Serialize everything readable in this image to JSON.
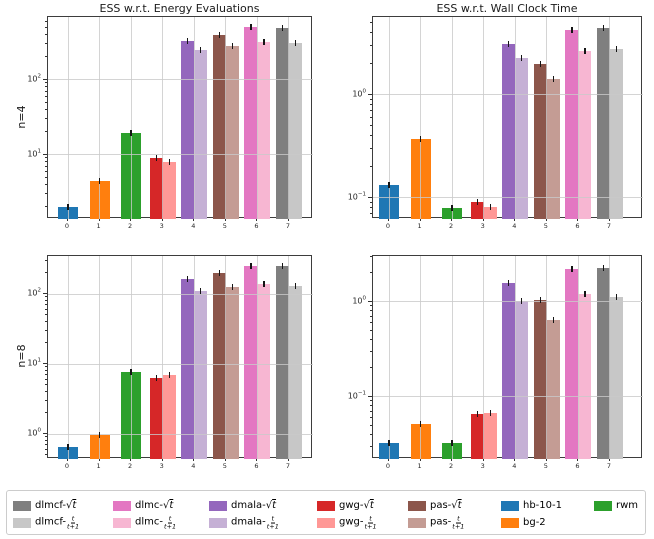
{
  "palette": {
    "dlmcf-sqrt": "#7f7f7f",
    "dlmcf-frac": "#c7c7c7",
    "dlmc-sqrt": "#e377c2",
    "dlmc-frac": "#f7b6d2",
    "dmala-sqrt": "#9467bd",
    "dmala-frac": "#c5b0d5",
    "gwg-sqrt": "#d62728",
    "gwg-frac": "#ff9896",
    "pas-sqrt": "#8c564b",
    "pas-frac": "#c49c94",
    "hb-10-1": "#1f77b4",
    "bg-2": "#ff7f0e",
    "rwm": "#2ca02c"
  },
  "chart_data": [
    {
      "position": "top-left",
      "type": "bar",
      "title": "ESS w.r.t. Energy Evaluations",
      "row_label": "n=4",
      "log_y": true,
      "grid": true,
      "ylim": [
        1.4,
        692
      ],
      "yticks": [
        {
          "value": 10,
          "exp": "1"
        },
        {
          "value": 100,
          "exp": "2"
        }
      ],
      "x_tick_labels": [
        "0",
        "1",
        "2",
        "3",
        "4",
        "5",
        "6",
        "7"
      ],
      "groups": [
        {
          "x": "0",
          "series": [
            {
              "name": "hb-10-1",
              "value": 2.0
            }
          ]
        },
        {
          "x": "1",
          "series": [
            {
              "name": "bg-2",
              "value": 4.5
            }
          ]
        },
        {
          "x": "2",
          "series": [
            {
              "name": "rwm",
              "value": 19.5
            }
          ]
        },
        {
          "x": "3",
          "series": [
            {
              "name": "gwg-sqrt",
              "value": 9.1
            },
            {
              "name": "gwg-frac",
              "value": 8.1
            }
          ]
        },
        {
          "x": "4",
          "series": [
            {
              "name": "dmala-sqrt",
              "value": 330
            },
            {
              "name": "dmala-frac",
              "value": 255
            }
          ]
        },
        {
          "x": "5",
          "series": [
            {
              "name": "pas-sqrt",
              "value": 395
            },
            {
              "name": "pas-frac",
              "value": 285
            }
          ]
        },
        {
          "x": "6",
          "series": [
            {
              "name": "dlmc-sqrt",
              "value": 510
            },
            {
              "name": "dlmc-frac",
              "value": 320
            }
          ]
        },
        {
          "x": "7",
          "series": [
            {
              "name": "dlmcf-sqrt",
              "value": 490
            },
            {
              "name": "dlmcf-frac",
              "value": 310
            }
          ]
        }
      ]
    },
    {
      "position": "top-right",
      "type": "bar",
      "title": "ESS w.r.t. Wall Clock Time",
      "row_label": "",
      "log_y": true,
      "grid": true,
      "ylim": [
        0.0625,
        5.72
      ],
      "yticks": [
        {
          "value": 0.1,
          "exp": "−1"
        },
        {
          "value": 1,
          "exp": "0"
        }
      ],
      "x_tick_labels": [
        "0",
        "1",
        "2",
        "3",
        "4",
        "5",
        "6",
        "7"
      ],
      "groups": [
        {
          "x": "0",
          "series": [
            {
              "name": "hb-10-1",
              "value": 0.135
            }
          ]
        },
        {
          "x": "1",
          "series": [
            {
              "name": "bg-2",
              "value": 0.37
            }
          ]
        },
        {
          "x": "2",
          "series": [
            {
              "name": "rwm",
              "value": 0.08
            }
          ]
        },
        {
          "x": "3",
          "series": [
            {
              "name": "gwg-sqrt",
              "value": 0.092
            },
            {
              "name": "gwg-frac",
              "value": 0.082
            }
          ]
        },
        {
          "x": "4",
          "series": [
            {
              "name": "dmala-sqrt",
              "value": 3.1
            },
            {
              "name": "dmala-frac",
              "value": 2.3
            }
          ]
        },
        {
          "x": "5",
          "series": [
            {
              "name": "pas-sqrt",
              "value": 2.0
            },
            {
              "name": "pas-frac",
              "value": 1.44
            }
          ]
        },
        {
          "x": "6",
          "series": [
            {
              "name": "dlmc-sqrt",
              "value": 4.3
            },
            {
              "name": "dlmc-frac",
              "value": 2.7
            }
          ]
        },
        {
          "x": "7",
          "series": [
            {
              "name": "dlmcf-sqrt",
              "value": 4.45
            },
            {
              "name": "dlmcf-frac",
              "value": 2.8
            }
          ]
        }
      ]
    },
    {
      "position": "bottom-left",
      "type": "bar",
      "title": "",
      "row_label": "n=8",
      "log_y": true,
      "grid": true,
      "ylim": [
        0.44,
        349
      ],
      "yticks": [
        {
          "value": 1,
          "exp": "0"
        },
        {
          "value": 10,
          "exp": "1"
        },
        {
          "value": 100,
          "exp": "2"
        }
      ],
      "x_tick_labels": [
        "0",
        "1",
        "2",
        "3",
        "4",
        "5",
        "6",
        "7"
      ],
      "groups": [
        {
          "x": "0",
          "series": [
            {
              "name": "hb-10-1",
              "value": 0.65
            }
          ]
        },
        {
          "x": "1",
          "series": [
            {
              "name": "bg-2",
              "value": 0.96
            }
          ]
        },
        {
          "x": "2",
          "series": [
            {
              "name": "rwm",
              "value": 7.6
            }
          ]
        },
        {
          "x": "3",
          "series": [
            {
              "name": "gwg-sqrt",
              "value": 6.4
            },
            {
              "name": "gwg-frac",
              "value": 6.9
            }
          ]
        },
        {
          "x": "4",
          "series": [
            {
              "name": "dmala-sqrt",
              "value": 165
            },
            {
              "name": "dmala-frac",
              "value": 110
            }
          ]
        },
        {
          "x": "5",
          "series": [
            {
              "name": "pas-sqrt",
              "value": 200
            },
            {
              "name": "pas-frac",
              "value": 125
            }
          ]
        },
        {
          "x": "6",
          "series": [
            {
              "name": "dlmc-sqrt",
              "value": 250
            },
            {
              "name": "dlmc-frac",
              "value": 140
            }
          ]
        },
        {
          "x": "7",
          "series": [
            {
              "name": "dlmcf-sqrt",
              "value": 250
            },
            {
              "name": "dlmcf-frac",
              "value": 128
            }
          ]
        }
      ]
    },
    {
      "position": "bottom-right",
      "type": "bar",
      "title": "",
      "row_label": "",
      "log_y": true,
      "grid": true,
      "ylim": [
        0.0222,
        3.05
      ],
      "yticks": [
        {
          "value": 0.1,
          "exp": "−1"
        },
        {
          "value": 1,
          "exp": "0"
        }
      ],
      "x_tick_labels": [
        "0",
        "1",
        "2",
        "3",
        "4",
        "5",
        "6",
        "7"
      ],
      "groups": [
        {
          "x": "0",
          "series": [
            {
              "name": "hb-10-1",
              "value": 0.033
            }
          ]
        },
        {
          "x": "1",
          "series": [
            {
              "name": "bg-2",
              "value": 0.052
            }
          ]
        },
        {
          "x": "2",
          "series": [
            {
              "name": "rwm",
              "value": 0.033
            }
          ]
        },
        {
          "x": "3",
          "series": [
            {
              "name": "gwg-sqrt",
              "value": 0.066
            },
            {
              "name": "gwg-frac",
              "value": 0.068
            }
          ]
        },
        {
          "x": "4",
          "series": [
            {
              "name": "dmala-sqrt",
              "value": 1.6
            },
            {
              "name": "dmala-frac",
              "value": 1.03
            }
          ]
        },
        {
          "x": "5",
          "series": [
            {
              "name": "pas-sqrt",
              "value": 1.04
            },
            {
              "name": "pas-frac",
              "value": 0.65
            }
          ]
        },
        {
          "x": "6",
          "series": [
            {
              "name": "dlmc-sqrt",
              "value": 2.2
            },
            {
              "name": "dlmc-frac",
              "value": 1.2
            }
          ]
        },
        {
          "x": "7",
          "series": [
            {
              "name": "dlmcf-sqrt",
              "value": 2.3
            },
            {
              "name": "dlmcf-frac",
              "value": 1.12
            }
          ]
        }
      ]
    }
  ],
  "legend": {
    "sqrt_symbol": "√",
    "frac_numerator": "t",
    "frac_denominator": "t+1",
    "entries": [
      {
        "key": "dlmcf-sqrt",
        "prefix": "dlmcf-",
        "form": "sqrt",
        "text": "dlmcf-√t",
        "col": 0,
        "row": 0
      },
      {
        "key": "dlmcf-frac",
        "prefix": "dlmcf-",
        "form": "frac",
        "text": "dlmcf-t/(t+1)",
        "col": 0,
        "row": 1
      },
      {
        "key": "dlmc-sqrt",
        "prefix": "dlmc-",
        "form": "sqrt",
        "text": "dlmc-√t",
        "col": 1,
        "row": 0
      },
      {
        "key": "dlmc-frac",
        "prefix": "dlmc-",
        "form": "frac",
        "text": "dlmc-t/(t+1)",
        "col": 1,
        "row": 1
      },
      {
        "key": "dmala-sqrt",
        "prefix": "dmala-",
        "form": "sqrt",
        "text": "dmala-√t",
        "col": 2,
        "row": 0
      },
      {
        "key": "dmala-frac",
        "prefix": "dmala-",
        "form": "frac",
        "text": "dmala-t/(t+1)",
        "col": 2,
        "row": 1
      },
      {
        "key": "gwg-sqrt",
        "prefix": "gwg-",
        "form": "sqrt",
        "text": "gwg-√t",
        "col": 3,
        "row": 0
      },
      {
        "key": "gwg-frac",
        "prefix": "gwg-",
        "form": "frac",
        "text": "gwg-t/(t+1)",
        "col": 3,
        "row": 1
      },
      {
        "key": "pas-sqrt",
        "prefix": "pas-",
        "form": "sqrt",
        "text": "pas-√t",
        "col": 4,
        "row": 0
      },
      {
        "key": "pas-frac",
        "prefix": "pas-",
        "form": "frac",
        "text": "pas-t/(t+1)",
        "col": 4,
        "row": 1
      },
      {
        "key": "hb-10-1",
        "prefix": "hb-10-1",
        "form": "plain",
        "text": "hb-10-1",
        "col": 5,
        "row": 0
      },
      {
        "key": "bg-2",
        "prefix": "bg-2",
        "form": "plain",
        "text": "bg-2",
        "col": 5,
        "row": 1
      },
      {
        "key": "rwm",
        "prefix": "rwm",
        "form": "plain",
        "text": "rwm",
        "col": 6,
        "row": 0
      }
    ]
  }
}
